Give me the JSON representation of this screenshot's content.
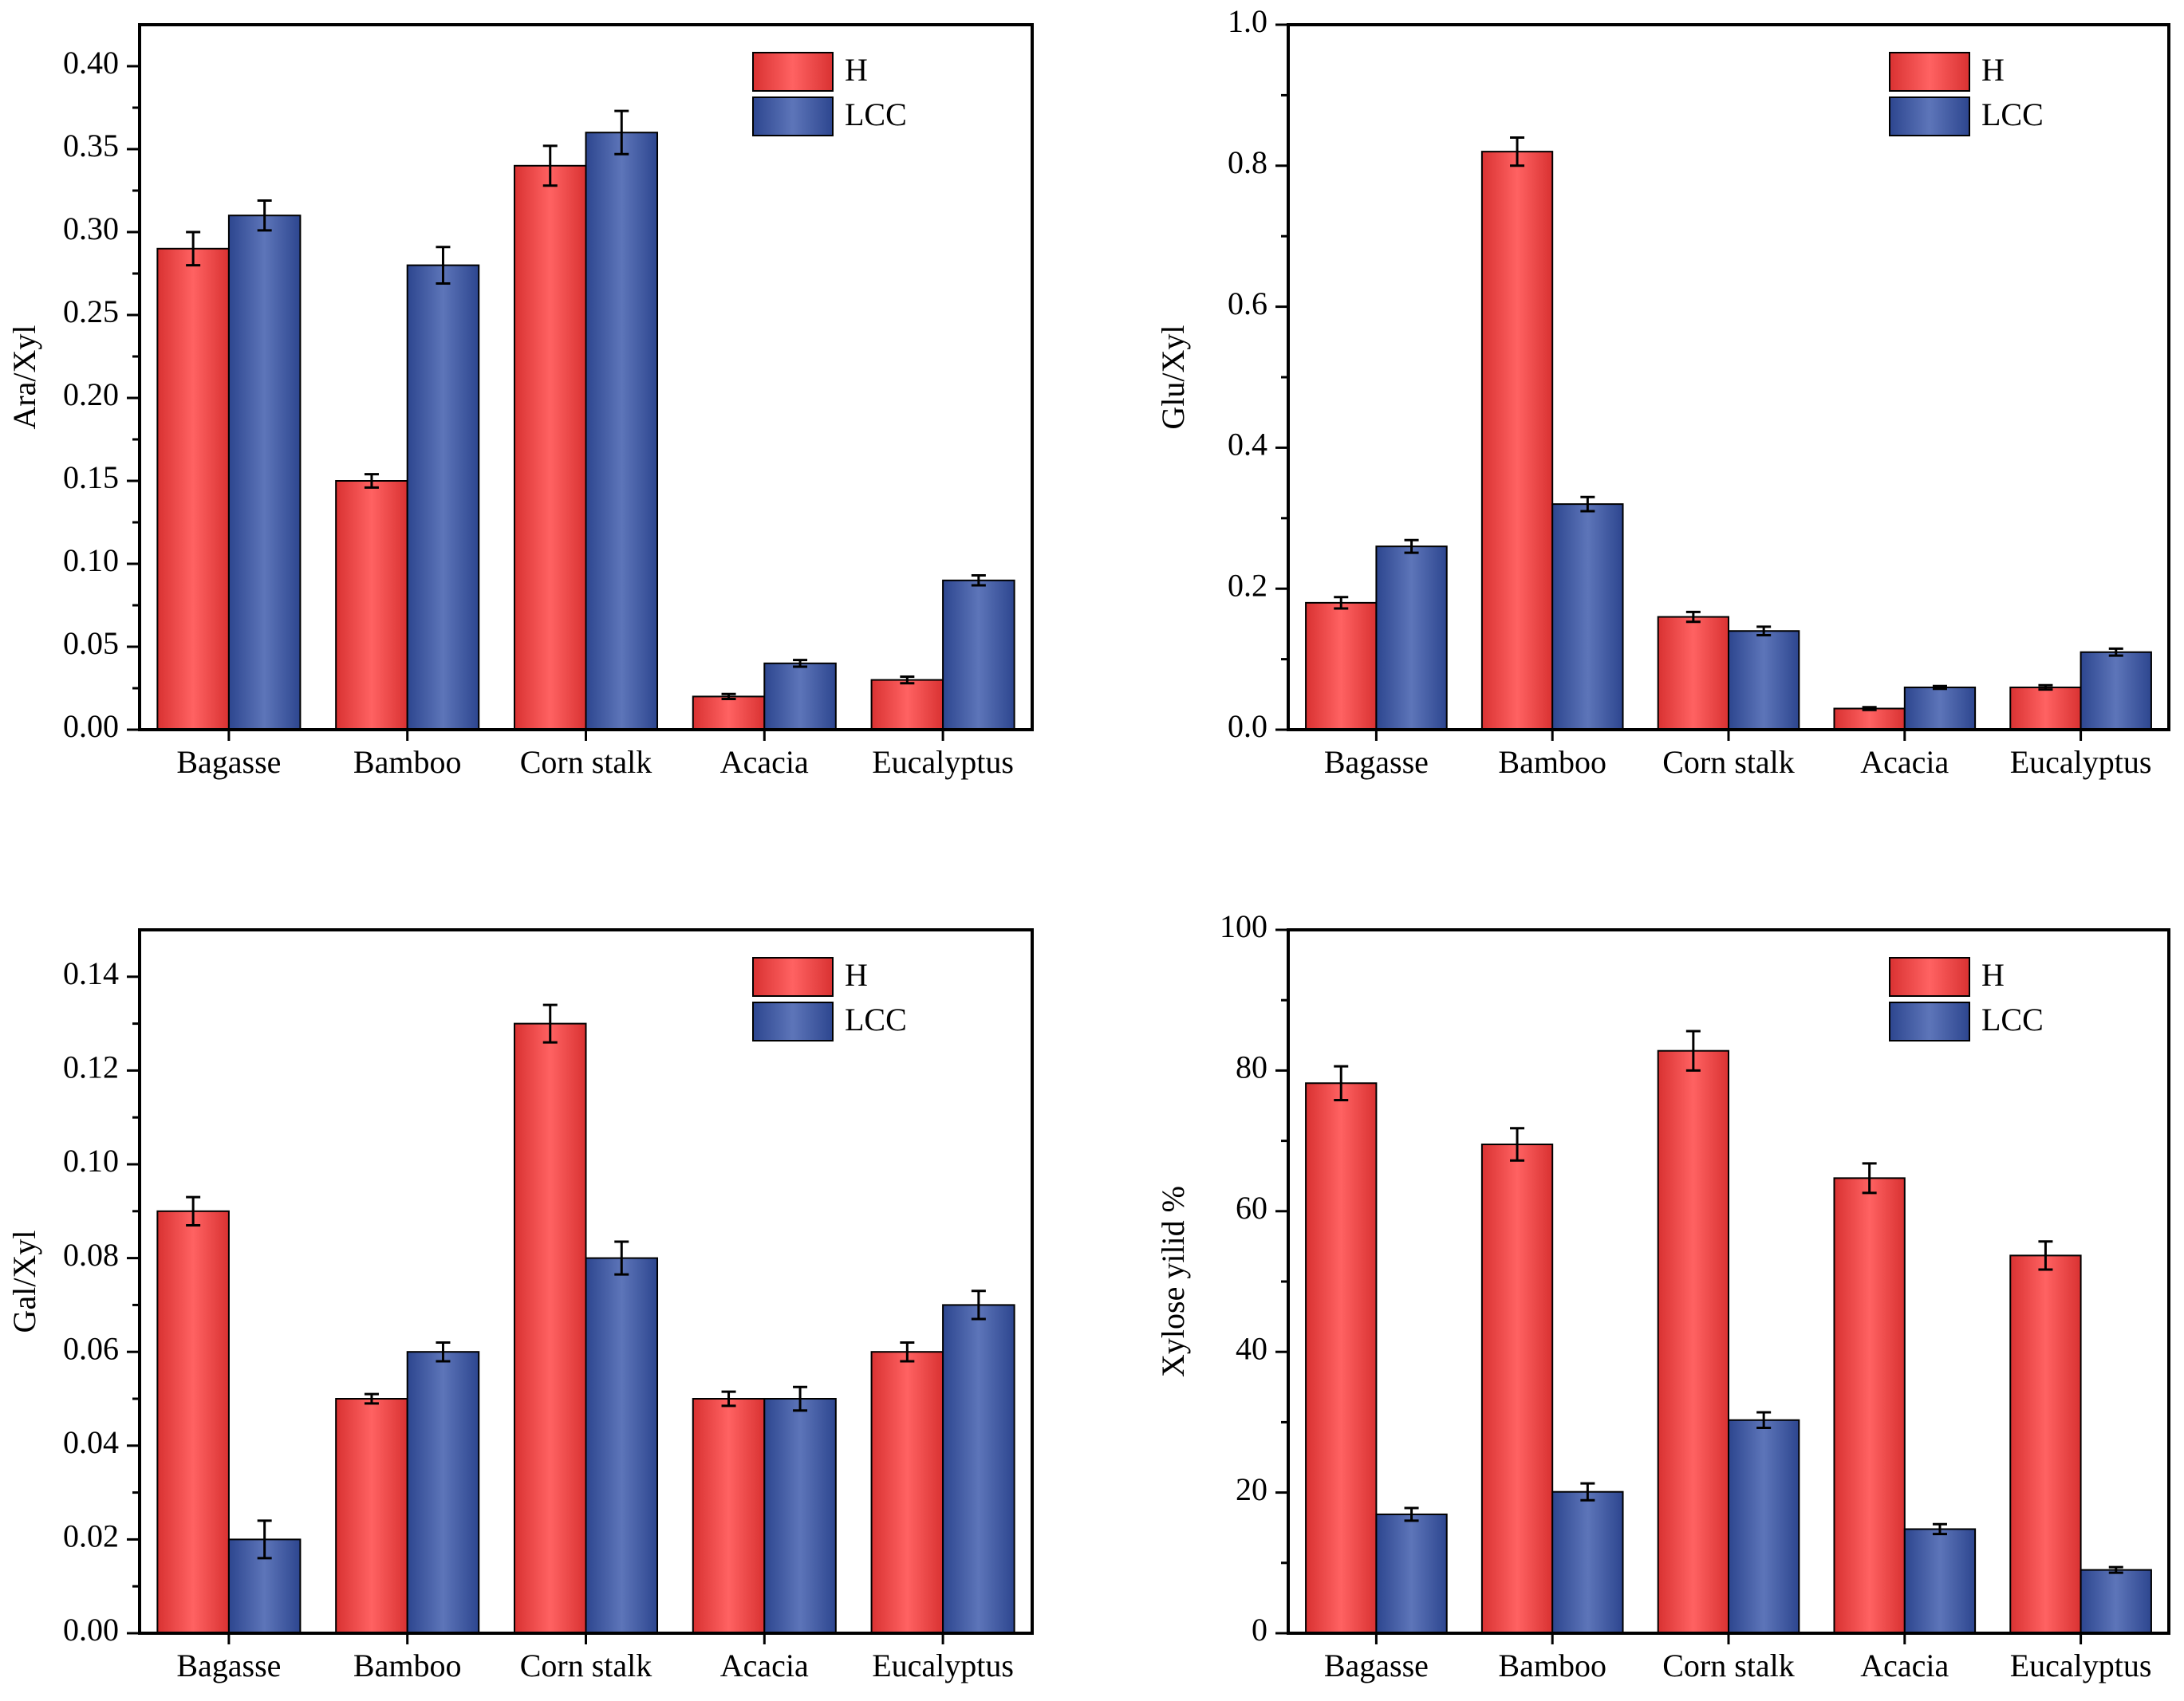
{
  "chart_data": [
    {
      "type": "bar",
      "ylabel": "Ara/Xyl",
      "categories": [
        "Bagasse",
        "Bamboo",
        "Corn stalk",
        "Acacia",
        "Eucalyptus"
      ],
      "series": [
        {
          "name": "H",
          "color": "#ff3b3b",
          "values": [
            0.29,
            0.15,
            0.34,
            0.02,
            0.03
          ],
          "errors": [
            0.01,
            0.004,
            0.012,
            0.0015,
            0.002
          ]
        },
        {
          "name": "LCC",
          "color": "#3552a8",
          "values": [
            0.31,
            0.28,
            0.36,
            0.04,
            0.09
          ],
          "errors": [
            0.009,
            0.011,
            0.013,
            0.002,
            0.003
          ]
        }
      ],
      "ylim": [
        0,
        0.425
      ],
      "yticks": [
        {
          "value": 0,
          "label": "0.00"
        },
        0.05,
        {
          "value": 0.1,
          "label": "0.10"
        },
        0.15,
        {
          "value": 0.2,
          "label": "0.20"
        },
        0.25,
        {
          "value": 0.3,
          "label": "0.30"
        },
        0.35,
        {
          "value": 0.4,
          "label": "0.40"
        }
      ],
      "legend": "top-right"
    },
    {
      "type": "bar",
      "ylabel": "Glu/Xyl",
      "categories": [
        "Bagasse",
        "Bamboo",
        "Corn stalk",
        "Acacia",
        "Eucalyptus"
      ],
      "series": [
        {
          "name": "H",
          "color": "#ff3b3b",
          "values": [
            0.18,
            0.82,
            0.16,
            0.03,
            0.06
          ],
          "errors": [
            0.008,
            0.02,
            0.007,
            0.002,
            0.003
          ]
        },
        {
          "name": "LCC",
          "color": "#3552a8",
          "values": [
            0.26,
            0.32,
            0.14,
            0.06,
            0.11
          ],
          "errors": [
            0.009,
            0.01,
            0.006,
            0.002,
            0.005
          ]
        }
      ],
      "ylim": [
        0,
        1
      ],
      "yticks": [
        {
          "value": 0,
          "label": "0.0"
        },
        0.2,
        0.4,
        0.6,
        0.8,
        {
          "value": 1,
          "label": "1.0"
        }
      ],
      "legend": "top-right"
    },
    {
      "type": "bar",
      "ylabel": "Gal/Xyl",
      "categories": [
        "Bagasse",
        "Bamboo",
        "Corn stalk",
        "Acacia",
        "Eucalyptus"
      ],
      "series": [
        {
          "name": "H",
          "color": "#ff3b3b",
          "values": [
            0.09,
            0.05,
            0.13,
            0.05,
            0.06
          ],
          "errors": [
            0.003,
            0.001,
            0.004,
            0.0015,
            0.002
          ]
        },
        {
          "name": "LCC",
          "color": "#3552a8",
          "values": [
            0.02,
            0.06,
            0.08,
            0.05,
            0.07
          ],
          "errors": [
            0.004,
            0.002,
            0.0035,
            0.0025,
            0.003
          ]
        }
      ],
      "ylim": [
        0,
        0.15
      ],
      "yticks": [
        {
          "value": 0,
          "label": "0.00"
        },
        0.02,
        0.04,
        0.06,
        0.08,
        {
          "value": 0.1,
          "label": "0.10"
        },
        0.12,
        0.14
      ],
      "legend": "top-right"
    },
    {
      "type": "bar",
      "ylabel": "Xylose yilid %",
      "categories": [
        "Bagasse",
        "Bamboo",
        "Corn stalk",
        "Acacia",
        "Eucalyptus"
      ],
      "series": [
        {
          "name": "H",
          "color": "#ff3b3b",
          "values": [
            78.2,
            69.5,
            82.8,
            64.7,
            53.7
          ],
          "errors": [
            2.4,
            2.3,
            2.8,
            2.1,
            2.0
          ]
        },
        {
          "name": "LCC",
          "color": "#3552a8",
          "values": [
            16.9,
            20.1,
            30.3,
            14.8,
            9.0
          ],
          "errors": [
            0.9,
            1.2,
            1.1,
            0.7,
            0.4
          ]
        }
      ],
      "ylim": [
        0,
        100
      ],
      "yticks": [
        0,
        20,
        40,
        60,
        80,
        100
      ],
      "legend": "top-right"
    }
  ]
}
